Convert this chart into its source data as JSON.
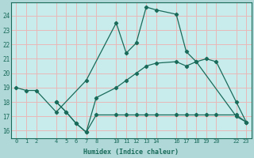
{
  "xlabel": "Humidex (Indice chaleur)",
  "bg_color": "#b0d8d8",
  "plot_bg_color": "#c8ecec",
  "grid_color": "#e8b8b8",
  "line_color": "#1a6b5a",
  "ylim": [
    15.5,
    24.9
  ],
  "xlim": [
    -0.5,
    23.5
  ],
  "yticks": [
    16,
    17,
    18,
    19,
    20,
    21,
    22,
    23,
    24
  ],
  "xticks": [
    0,
    1,
    2,
    4,
    5,
    6,
    7,
    8,
    10,
    11,
    12,
    13,
    14,
    16,
    17,
    18,
    19,
    20,
    22,
    23
  ],
  "series": [
    {
      "x": [
        0,
        1,
        2,
        4,
        7,
        10,
        11,
        12,
        13,
        14,
        16,
        17,
        18,
        22,
        23
      ],
      "y": [
        19.0,
        18.8,
        18.8,
        17.3,
        19.5,
        23.5,
        21.4,
        22.1,
        24.6,
        24.4,
        24.1,
        21.5,
        20.8,
        17.0,
        16.6
      ]
    },
    {
      "x": [
        4,
        5,
        6,
        7,
        8,
        10,
        11,
        12,
        13,
        14,
        16,
        17,
        18,
        19,
        20,
        22,
        23
      ],
      "y": [
        18.0,
        17.3,
        16.5,
        15.9,
        18.3,
        19.0,
        19.5,
        20.0,
        20.5,
        20.7,
        20.8,
        20.5,
        20.8,
        21.0,
        20.8,
        18.0,
        16.6
      ]
    },
    {
      "x": [
        4,
        5,
        6,
        7,
        8,
        10,
        11,
        12,
        13,
        14,
        16,
        17,
        18,
        19,
        20,
        22,
        23
      ],
      "y": [
        18.0,
        17.3,
        16.5,
        15.9,
        17.1,
        17.1,
        17.1,
        17.1,
        17.1,
        17.1,
        17.1,
        17.1,
        17.1,
        17.1,
        17.1,
        17.1,
        16.6
      ]
    }
  ]
}
